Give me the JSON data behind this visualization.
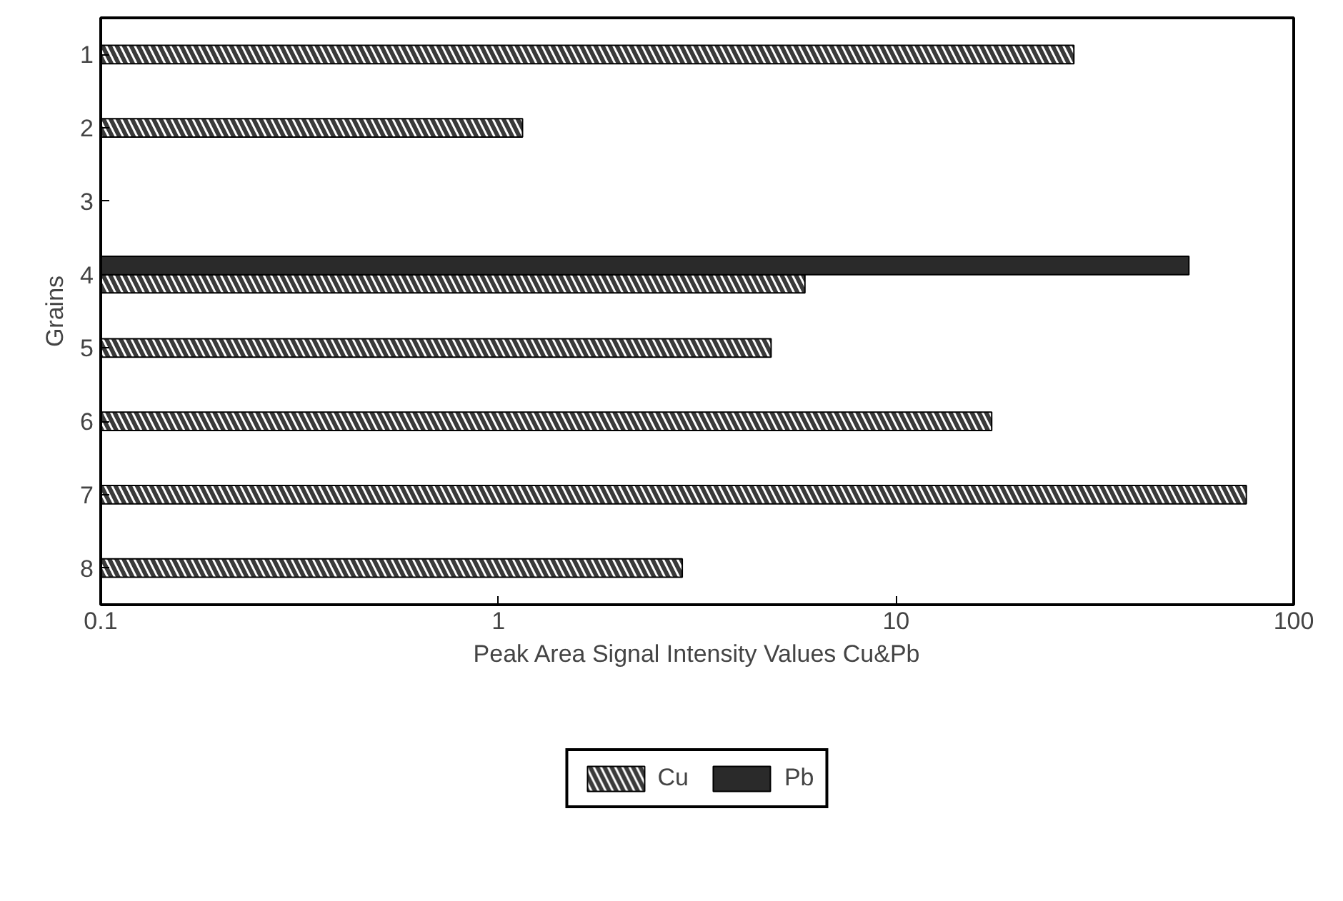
{
  "chart_data": {
    "type": "bar",
    "orientation": "horizontal",
    "log": "x",
    "xlabel": "Peak Area Signal Intensity Values Cu&Pb",
    "ylabel": "Grains",
    "categories": [
      "1",
      "2",
      "3",
      "4",
      "5",
      "6",
      "7",
      "8"
    ],
    "series": [
      {
        "name": "Cu",
        "color": "#3a3a3a",
        "values": [
          28,
          1.15,
          null,
          5.9,
          4.85,
          17.4,
          76,
          2.9
        ]
      },
      {
        "name": "Pb",
        "color": "#2a2a2a",
        "values": [
          null,
          null,
          null,
          54.5,
          null,
          null,
          null,
          null
        ]
      }
    ],
    "xlim": [
      0.1,
      100
    ],
    "xticks": [
      0.1,
      1,
      10,
      100
    ],
    "grid": false,
    "legend": "bottom"
  }
}
